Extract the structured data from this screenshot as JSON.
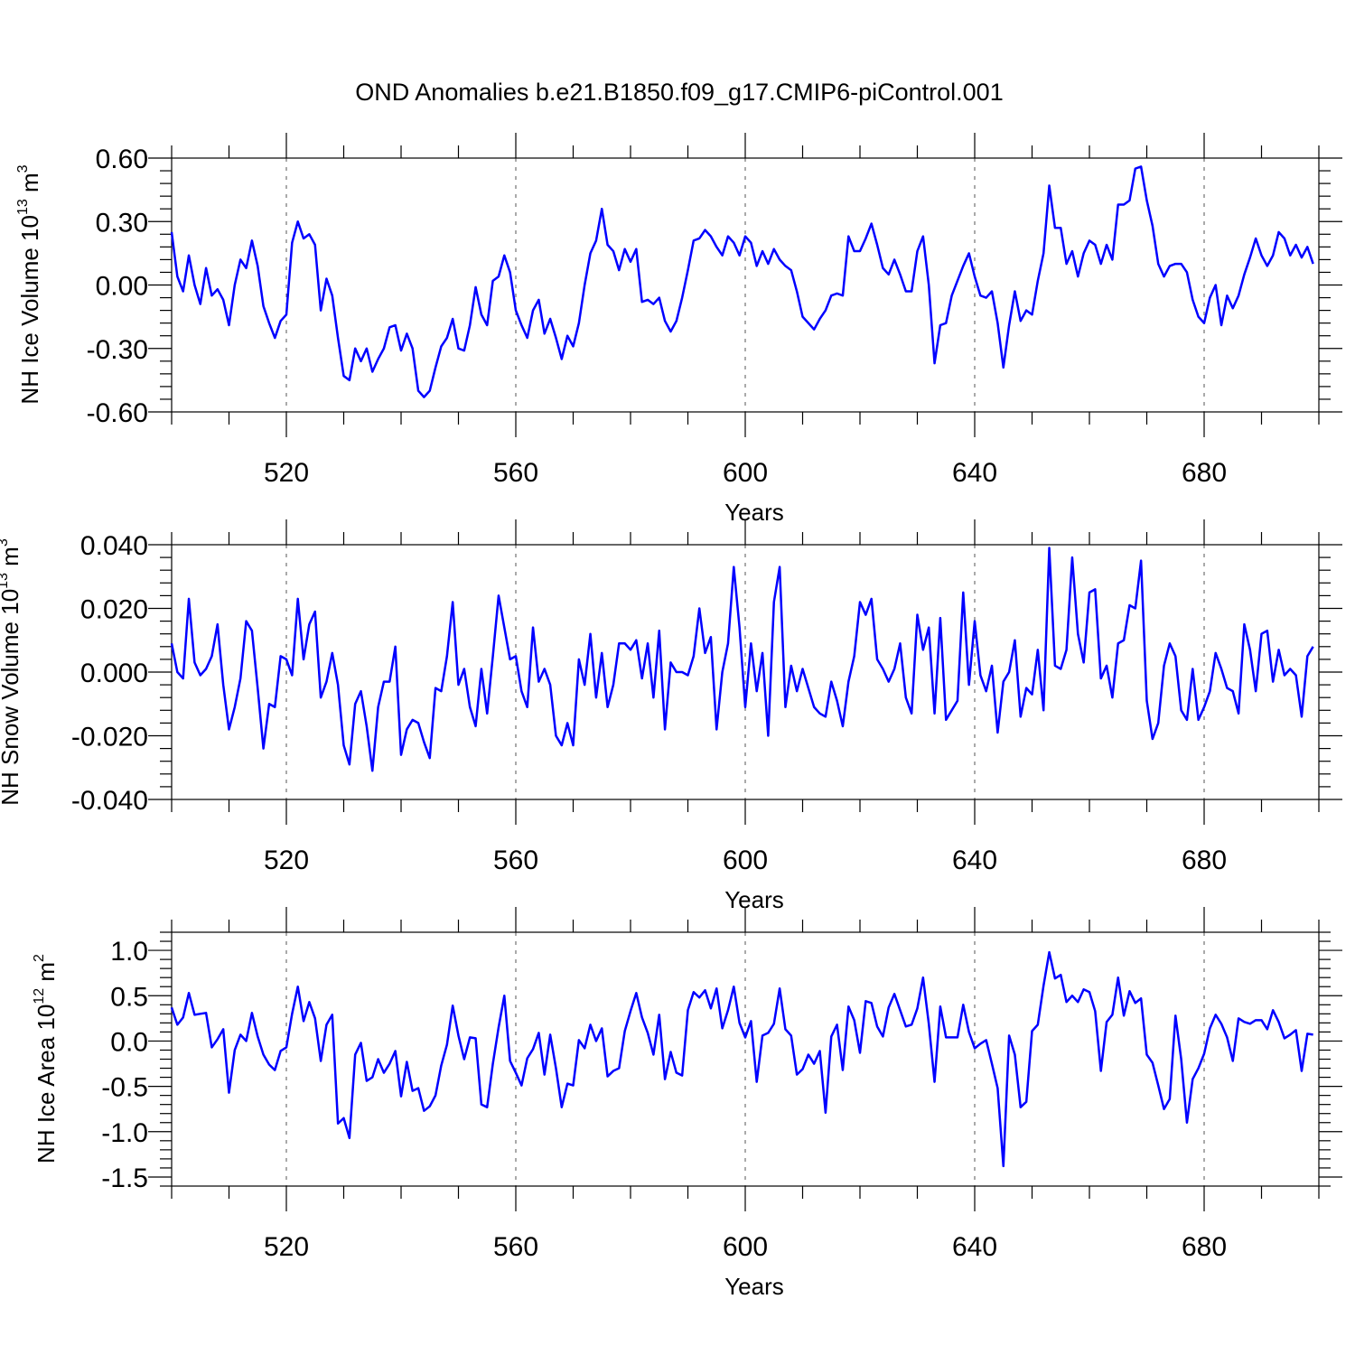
{
  "title": "OND Anomalies b.e21.B1850.f09_g17.CMIP6-piControl.001",
  "colors": {
    "line": "#0000ff",
    "axis": "#000000",
    "grid": "#555555"
  },
  "chart_data": [
    {
      "type": "line",
      "ylabel_main": "NH Ice Volume 10",
      "ylabel_exp": "13",
      "ylabel_unit": " m",
      "ylabel_unit_exp": "3",
      "xlabel": "Years",
      "xlim": [
        500,
        700
      ],
      "ylim": [
        -0.6,
        0.6
      ],
      "yticks": [
        -0.6,
        -0.3,
        0.0,
        0.3,
        0.6
      ],
      "yticklabels": [
        "-0.60",
        "-0.30",
        "0.00",
        "0.30",
        "0.60"
      ],
      "xticks": [
        520,
        560,
        600,
        640,
        680
      ],
      "xticklabels": [
        "520",
        "560",
        "600",
        "640",
        "680"
      ],
      "x_start": 500,
      "values": [
        0.25,
        0.04,
        -0.03,
        0.14,
        0.0,
        -0.09,
        0.08,
        -0.05,
        -0.02,
        -0.07,
        -0.19,
        0.0,
        0.12,
        0.08,
        0.21,
        0.09,
        -0.1,
        -0.18,
        -0.25,
        -0.17,
        -0.14,
        0.2,
        0.3,
        0.22,
        0.24,
        0.19,
        -0.12,
        0.03,
        -0.05,
        -0.25,
        -0.43,
        -0.45,
        -0.3,
        -0.36,
        -0.3,
        -0.41,
        -0.35,
        -0.3,
        -0.2,
        -0.19,
        -0.31,
        -0.23,
        -0.3,
        -0.5,
        -0.53,
        -0.5,
        -0.39,
        -0.29,
        -0.25,
        -0.16,
        -0.3,
        -0.31,
        -0.19,
        -0.01,
        -0.14,
        -0.19,
        0.02,
        0.04,
        0.14,
        0.06,
        -0.12,
        -0.19,
        -0.25,
        -0.12,
        -0.07,
        -0.23,
        -0.16,
        -0.25,
        -0.35,
        -0.24,
        -0.29,
        -0.18,
        0.0,
        0.15,
        0.21,
        0.36,
        0.19,
        0.16,
        0.07,
        0.17,
        0.11,
        0.17,
        -0.08,
        -0.07,
        -0.09,
        -0.06,
        -0.17,
        -0.22,
        -0.17,
        -0.06,
        0.07,
        0.21,
        0.22,
        0.26,
        0.23,
        0.18,
        0.14,
        0.23,
        0.2,
        0.14,
        0.23,
        0.2,
        0.09,
        0.16,
        0.1,
        0.17,
        0.12,
        0.09,
        0.07,
        -0.03,
        -0.15,
        -0.18,
        -0.21,
        -0.16,
        -0.12,
        -0.05,
        -0.04,
        -0.05,
        0.23,
        0.16,
        0.16,
        0.22,
        0.29,
        0.19,
        0.08,
        0.05,
        0.12,
        0.05,
        -0.03,
        -0.03,
        0.16,
        0.23,
        0.0,
        -0.37,
        -0.19,
        -0.18,
        -0.05,
        0.02,
        0.09,
        0.15,
        0.04,
        -0.05,
        -0.06,
        -0.03,
        -0.18,
        -0.39,
        -0.19,
        -0.03,
        -0.17,
        -0.12,
        -0.14,
        0.02,
        0.15,
        0.47,
        0.27,
        0.27,
        0.1,
        0.16,
        0.04,
        0.15,
        0.21,
        0.19,
        0.1,
        0.19,
        0.12,
        0.38,
        0.38,
        0.4,
        0.55,
        0.56,
        0.4,
        0.28,
        0.1,
        0.04,
        0.09,
        0.1,
        0.1,
        0.06,
        -0.07,
        -0.15,
        -0.18,
        -0.06,
        0.0,
        -0.19,
        -0.05,
        -0.11,
        -0.05,
        0.05,
        0.13,
        0.22,
        0.14,
        0.09,
        0.14,
        0.25,
        0.22,
        0.14,
        0.19,
        0.13,
        0.18,
        0.1
      ]
    },
    {
      "type": "line",
      "ylabel_main": "NH Snow Volume 10",
      "ylabel_exp": "13",
      "ylabel_unit": " m",
      "ylabel_unit_exp": "3",
      "xlabel": "Years",
      "xlim": [
        500,
        700
      ],
      "ylim": [
        -0.04,
        0.04
      ],
      "yticks": [
        -0.04,
        -0.02,
        0.0,
        0.02,
        0.04
      ],
      "yticklabels": [
        "-0.040",
        "-0.020",
        "0.000",
        "0.020",
        "0.040"
      ],
      "xticks": [
        520,
        560,
        600,
        640,
        680
      ],
      "xticklabels": [
        "520",
        "560",
        "600",
        "640",
        "680"
      ],
      "x_start": 500,
      "values": [
        0.009,
        0.0,
        -0.002,
        0.023,
        0.003,
        -0.001,
        0.001,
        0.005,
        0.015,
        -0.004,
        -0.018,
        -0.011,
        -0.002,
        0.016,
        0.013,
        -0.005,
        -0.024,
        -0.01,
        -0.011,
        0.005,
        0.004,
        -0.001,
        0.023,
        0.004,
        0.015,
        0.019,
        -0.008,
        -0.003,
        0.006,
        -0.004,
        -0.023,
        -0.029,
        -0.01,
        -0.006,
        -0.017,
        -0.031,
        -0.011,
        -0.003,
        -0.003,
        0.008,
        -0.026,
        -0.018,
        -0.015,
        -0.016,
        -0.022,
        -0.027,
        -0.005,
        -0.006,
        0.005,
        0.022,
        -0.004,
        0.001,
        -0.011,
        -0.017,
        0.001,
        -0.013,
        0.005,
        0.024,
        0.014,
        0.004,
        0.005,
        -0.006,
        -0.011,
        0.014,
        -0.003,
        0.001,
        -0.004,
        -0.02,
        -0.023,
        -0.016,
        -0.023,
        0.004,
        -0.004,
        0.012,
        -0.008,
        0.006,
        -0.011,
        -0.004,
        0.009,
        0.009,
        0.007,
        0.01,
        -0.002,
        0.009,
        -0.008,
        0.013,
        -0.018,
        0.003,
        0.0,
        0.0,
        -0.001,
        0.005,
        0.02,
        0.006,
        0.011,
        -0.018,
        0.0,
        0.009,
        0.033,
        0.014,
        -0.011,
        0.009,
        -0.006,
        0.006,
        -0.02,
        0.022,
        0.033,
        -0.011,
        0.002,
        -0.006,
        0.001,
        -0.005,
        -0.011,
        -0.013,
        -0.014,
        -0.003,
        -0.009,
        -0.017,
        -0.003,
        0.005,
        0.022,
        0.018,
        0.023,
        0.004,
        0.001,
        -0.003,
        0.001,
        0.009,
        -0.008,
        -0.013,
        0.018,
        0.007,
        0.014,
        -0.013,
        0.017,
        -0.015,
        -0.012,
        -0.009,
        0.025,
        -0.004,
        0.016,
        -0.001,
        -0.006,
        0.002,
        -0.019,
        -0.003,
        0.0,
        0.01,
        -0.014,
        -0.005,
        -0.007,
        0.007,
        -0.012,
        0.039,
        0.002,
        0.001,
        0.007,
        0.036,
        0.012,
        0.003,
        0.025,
        0.026,
        -0.002,
        0.002,
        -0.008,
        0.009,
        0.01,
        0.021,
        0.02,
        0.035,
        -0.009,
        -0.021,
        -0.016,
        0.002,
        0.009,
        0.005,
        -0.012,
        -0.015,
        0.001,
        -0.015,
        -0.011,
        -0.006,
        0.006,
        0.001,
        -0.005,
        -0.006,
        -0.013,
        0.015,
        0.007,
        -0.006,
        0.012,
        0.013,
        -0.003,
        0.007,
        -0.001,
        0.001,
        -0.001,
        -0.014,
        0.005,
        0.008
      ]
    },
    {
      "type": "line",
      "ylabel_main": "NH Ice Area 10",
      "ylabel_exp": "12",
      "ylabel_unit": " m",
      "ylabel_unit_exp": "2",
      "xlabel": "Years",
      "xlim": [
        500,
        700
      ],
      "ylim": [
        -1.6,
        1.2
      ],
      "yticks": [
        -1.5,
        -1.0,
        -0.5,
        0.0,
        0.5,
        1.0
      ],
      "yticklabels": [
        "-1.5",
        "-1.0",
        "-0.5",
        "0.0",
        "0.5",
        "1.0"
      ],
      "xticks": [
        520,
        560,
        600,
        640,
        680
      ],
      "xticklabels": [
        "520",
        "560",
        "600",
        "640",
        "680"
      ],
      "x_start": 500,
      "values": [
        0.37,
        0.18,
        0.26,
        0.53,
        0.29,
        0.3,
        0.31,
        -0.07,
        0.02,
        0.13,
        -0.57,
        -0.1,
        0.07,
        0.0,
        0.31,
        0.05,
        -0.15,
        -0.26,
        -0.32,
        -0.11,
        -0.07,
        0.3,
        0.6,
        0.22,
        0.43,
        0.25,
        -0.22,
        0.18,
        0.29,
        -0.91,
        -0.85,
        -1.07,
        -0.15,
        -0.02,
        -0.44,
        -0.4,
        -0.2,
        -0.35,
        -0.25,
        -0.11,
        -0.61,
        -0.23,
        -0.55,
        -0.52,
        -0.77,
        -0.72,
        -0.6,
        -0.27,
        -0.04,
        0.39,
        0.06,
        -0.2,
        0.04,
        0.03,
        -0.7,
        -0.73,
        -0.25,
        0.15,
        0.5,
        -0.22,
        -0.35,
        -0.49,
        -0.19,
        -0.09,
        0.09,
        -0.37,
        0.07,
        -0.3,
        -0.73,
        -0.47,
        -0.49,
        0.01,
        -0.08,
        0.18,
        0.0,
        0.14,
        -0.39,
        -0.33,
        -0.3,
        0.11,
        0.33,
        0.53,
        0.26,
        0.09,
        -0.15,
        0.29,
        -0.42,
        -0.12,
        -0.35,
        -0.38,
        0.34,
        0.54,
        0.48,
        0.56,
        0.36,
        0.58,
        0.14,
        0.34,
        0.6,
        0.2,
        0.04,
        0.22,
        -0.45,
        0.06,
        0.09,
        0.19,
        0.58,
        0.13,
        0.06,
        -0.37,
        -0.31,
        -0.15,
        -0.25,
        -0.11,
        -0.79,
        0.05,
        0.18,
        -0.32,
        0.38,
        0.23,
        -0.13,
        0.44,
        0.42,
        0.16,
        0.05,
        0.37,
        0.52,
        0.34,
        0.16,
        0.18,
        0.36,
        0.7,
        0.19,
        -0.45,
        0.38,
        0.04,
        0.04,
        0.04,
        0.4,
        0.1,
        -0.08,
        -0.03,
        0.01,
        -0.25,
        -0.52,
        -1.38,
        0.06,
        -0.15,
        -0.73,
        -0.67,
        0.11,
        0.18,
        0.61,
        0.98,
        0.69,
        0.73,
        0.43,
        0.5,
        0.43,
        0.57,
        0.54,
        0.33,
        -0.33,
        0.21,
        0.29,
        0.7,
        0.28,
        0.55,
        0.42,
        0.47,
        -0.15,
        -0.24,
        -0.49,
        -0.75,
        -0.64,
        0.28,
        -0.2,
        -0.9,
        -0.42,
        -0.3,
        -0.14,
        0.14,
        0.29,
        0.19,
        0.04,
        -0.22,
        0.25,
        0.21,
        0.19,
        0.23,
        0.23,
        0.13,
        0.34,
        0.21,
        0.03,
        0.07,
        0.12,
        -0.33,
        0.08,
        0.07
      ]
    }
  ]
}
